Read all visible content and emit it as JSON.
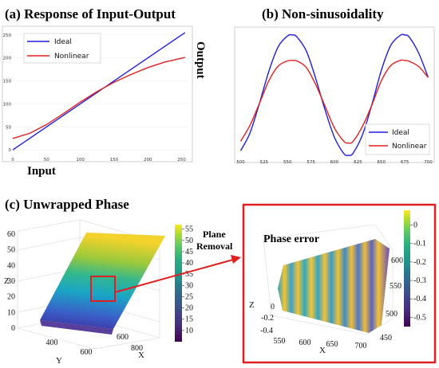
{
  "chart_data": [
    {
      "id": "a",
      "type": "line",
      "title": "(a) Response of Input-Output",
      "xlabel": "Input",
      "ylabel": "Output",
      "xlim": [
        0,
        260
      ],
      "ylim": [
        -10,
        260
      ],
      "xticks": [
        0,
        50,
        100,
        150,
        200,
        250
      ],
      "yticks": [
        0,
        50,
        100,
        150,
        200,
        250
      ],
      "legend_position": "top-left",
      "series": [
        {
          "name": "Ideal",
          "color": "#1f1fdd",
          "x": [
            0,
            50,
            100,
            150,
            200,
            255
          ],
          "y": [
            0,
            50,
            100,
            150,
            200,
            255
          ]
        },
        {
          "name": "Nonlinear",
          "color": "#e02020",
          "x": [
            0,
            25,
            50,
            75,
            100,
            125,
            150,
            175,
            200,
            225,
            255
          ],
          "y": [
            25,
            36,
            55,
            79,
            104,
            127,
            147,
            164,
            179,
            191,
            201
          ]
        }
      ]
    },
    {
      "id": "b",
      "type": "line",
      "title": "(b) Non-sinusoidality",
      "xlim": [
        497,
        703
      ],
      "ylim": [
        -5,
        265
      ],
      "xticks": [
        500,
        525,
        550,
        575,
        600,
        625,
        650,
        675,
        700
      ],
      "legend_position": "bottom-right",
      "series": [
        {
          "name": "Ideal",
          "color": "#1f1fdd",
          "x": [
            500,
            510,
            520,
            530,
            540,
            550,
            555,
            560,
            570,
            580,
            590,
            600,
            610,
            615,
            620,
            630,
            640,
            650,
            660,
            670,
            675,
            680,
            690,
            700
          ],
          "y": [
            10,
            48,
            110,
            178,
            230,
            253,
            255,
            251,
            221,
            163,
            96,
            38,
            4,
            0,
            5,
            44,
            108,
            180,
            233,
            254,
            255,
            250,
            216,
            165
          ]
        },
        {
          "name": "Nonlinear",
          "color": "#e02020",
          "x": [
            500,
            510,
            520,
            530,
            540,
            550,
            555,
            560,
            570,
            580,
            590,
            600,
            610,
            615,
            620,
            630,
            640,
            650,
            660,
            670,
            675,
            680,
            690,
            700
          ],
          "y": [
            30,
            64,
            110,
            158,
            189,
            200,
            201,
            200,
            186,
            150,
            104,
            58,
            30,
            26,
            30,
            62,
            107,
            158,
            190,
            201,
            201,
            199,
            188,
            165
          ]
        }
      ]
    },
    {
      "id": "c",
      "type": "surface3d",
      "title": "(c) Unwrapped Phase",
      "xlabel": "X",
      "ylabel": "Y",
      "zlabel": "Z",
      "zticks": [
        0,
        10,
        20,
        30,
        40,
        50,
        60
      ],
      "yticks": [
        400,
        600
      ],
      "xticks": [
        600,
        800
      ],
      "colorbar": {
        "min": 5,
        "max": 57,
        "ticks": [
          10,
          15,
          20,
          25,
          30,
          35,
          40,
          45,
          50,
          55
        ]
      },
      "colormap": "viridis"
    },
    {
      "id": "d",
      "type": "surface3d",
      "title": "Phase error",
      "xlabel": "X",
      "zlabel": "Z",
      "zticks": [
        0,
        -0.2,
        -0.4
      ],
      "xticks": [
        550,
        600,
        650,
        700
      ],
      "yticks": [
        450,
        500,
        550,
        600
      ],
      "colorbar": {
        "min": -0.55,
        "max": 0.08,
        "ticks": [
          0,
          -0.1,
          -0.2,
          -0.3,
          -0.4,
          -0.5
        ]
      },
      "colormap": "viridis"
    }
  ],
  "annotation": {
    "line1": "Plane",
    "line2": "Removal"
  },
  "colors": {
    "highlight": "#e02020",
    "ideal": "#1f1fdd",
    "nonlinear": "#e02020"
  }
}
